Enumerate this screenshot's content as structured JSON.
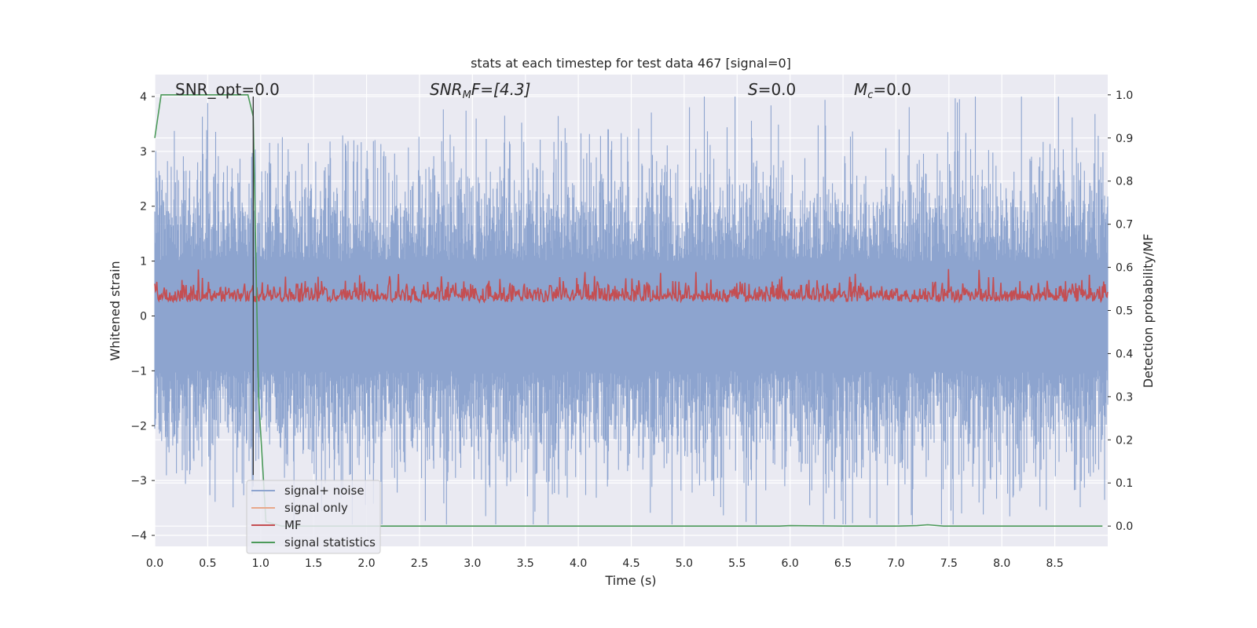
{
  "chart_data": {
    "type": "line",
    "title": "stats at each timestep for test data 467 [signal=0]",
    "xlabel": "Time (s)",
    "ylabel_left": "Whitened strain",
    "ylabel_right": "Detection probability/MF",
    "xlim": [
      0.0,
      9.0
    ],
    "ylim_left": [
      -4.2,
      4.4
    ],
    "ylim_right": [
      -0.047,
      1.047
    ],
    "x_ticks": [
      "0.0",
      "0.5",
      "1.0",
      "1.5",
      "2.0",
      "2.5",
      "3.0",
      "3.5",
      "4.0",
      "4.5",
      "5.0",
      "5.5",
      "6.0",
      "6.5",
      "7.0",
      "7.5",
      "8.0",
      "8.5"
    ],
    "y_ticks_left": [
      "4",
      "3",
      "2",
      "1",
      "0",
      "−1",
      "−2",
      "−3",
      "−4"
    ],
    "y_ticks_right": [
      "1.0",
      "0.9",
      "0.8",
      "0.7",
      "0.6",
      "0.5",
      "0.4",
      "0.3",
      "0.2",
      "0.1",
      "0.0"
    ],
    "grid": true,
    "legend_position": "lower-left",
    "annotations": {
      "snr_opt": "SNR_opt=0.0",
      "snr_mf_main": "SNR",
      "snr_mf_sub": "M",
      "snr_mf_rest": "F=[4.3]",
      "s_italic": "S",
      "s_rest": "=0.0",
      "mc_main": "M",
      "mc_sub": "c",
      "mc_rest": "=0.0"
    },
    "vertical_line_x": 0.93,
    "series": [
      {
        "name": "signal+ noise",
        "color": "#8da4cf",
        "axis": "left",
        "kind": "noise",
        "amplitude_range": [
          -3.8,
          4.0
        ]
      },
      {
        "name": "signal only",
        "color": "#e8a88a",
        "axis": "left",
        "values": []
      },
      {
        "name": "MF",
        "color": "#c44e52",
        "axis": "right",
        "kind": "noise",
        "range": [
          0.5,
          0.6
        ]
      },
      {
        "name": "signal statistics",
        "color": "#4c9a5a",
        "axis": "right",
        "x": [
          0.0,
          0.06,
          0.4,
          0.8,
          0.88,
          0.93,
          0.98,
          1.05,
          1.2,
          2.0,
          3.0,
          4.0,
          5.0,
          5.9,
          6.0,
          6.5,
          7.0,
          7.2,
          7.3,
          7.45,
          8.0,
          8.95
        ],
        "values": [
          0.9,
          1.0,
          1.0,
          1.0,
          1.0,
          0.95,
          0.3,
          0.01,
          0.0,
          0.0,
          0.0,
          0.0,
          0.0,
          0.0,
          0.001,
          0.0,
          0.0,
          0.001,
          0.003,
          0.0,
          0.0,
          0.0
        ]
      }
    ]
  },
  "colors": {
    "plot_background": "#eaeaf2",
    "grid": "#ffffff",
    "vertical_line": "#333333"
  }
}
